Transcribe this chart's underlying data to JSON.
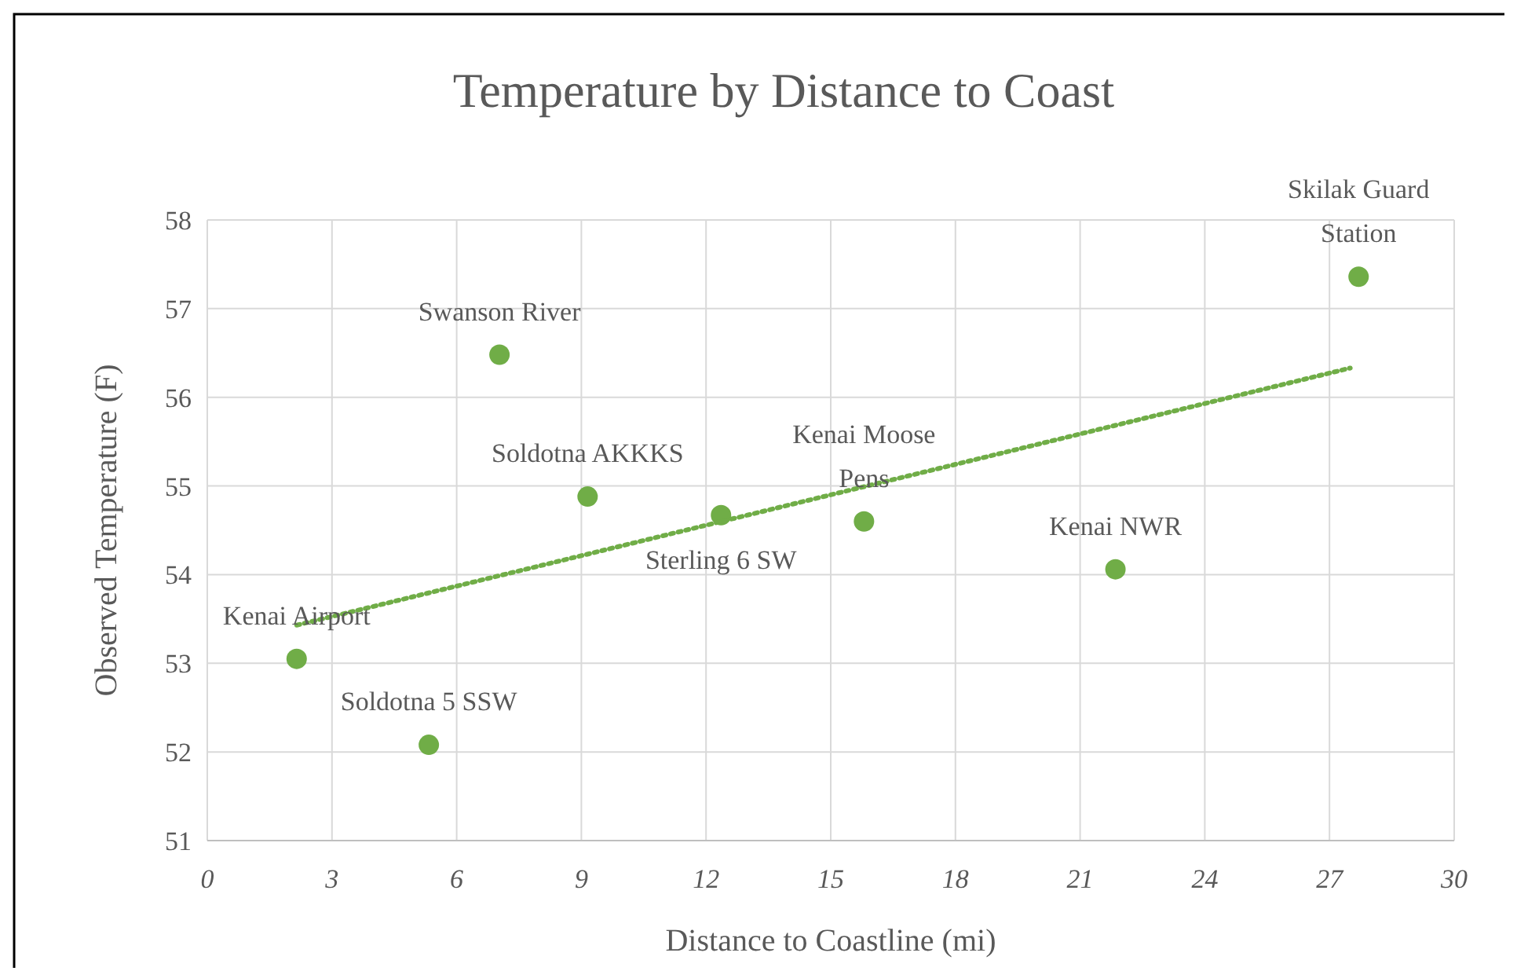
{
  "chart_data": {
    "type": "scatter",
    "title": "Temperature by Distance to Coast",
    "xlabel": "Distance to Coastline (mi)",
    "ylabel": "Observed Temperature (F)",
    "xlim": [
      0,
      30
    ],
    "xticks": [
      0,
      3,
      6,
      9,
      12,
      15,
      18,
      21,
      24,
      27,
      30
    ],
    "ylim": [
      51,
      58
    ],
    "yticks": [
      51,
      52,
      53,
      54,
      55,
      56,
      57,
      58
    ],
    "grid": true,
    "marker": "circle",
    "series": [
      {
        "color": "#70ad47",
        "x": [
          2.15,
          5.33,
          7.03,
          9.15,
          12.36,
          15.8,
          21.85,
          27.7
        ],
        "values": [
          53.05,
          52.08,
          56.48,
          54.88,
          54.67,
          54.6,
          54.06,
          57.36
        ]
      },
      {
        "type": "line",
        "line_style": "dotted",
        "marker": "none",
        "color": "#70ad47",
        "x": [
          2.15,
          27.5
        ],
        "values": [
          53.43,
          56.33
        ]
      }
    ],
    "annotations": [
      {
        "text": "Kenai Airport",
        "x": 2.15,
        "y": 53.05
      },
      {
        "text": "Soldotna 5 SSW",
        "x": 5.33,
        "y": 52.08
      },
      {
        "text": "Swanson River",
        "x": 7.03,
        "y": 56.48
      },
      {
        "text": "Soldotna AKKKS",
        "x": 9.15,
        "y": 54.88
      },
      {
        "text": "Sterling 6 SW",
        "x": 12.36,
        "y": 54.67
      },
      {
        "text": "Kenai Moose Pens",
        "x": 15.8,
        "y": 54.6
      },
      {
        "text": "Kenai NWR",
        "x": 21.85,
        "y": 54.06
      },
      {
        "text": "Skilak Guard Station",
        "x": 27.7,
        "y": 57.36
      }
    ]
  }
}
